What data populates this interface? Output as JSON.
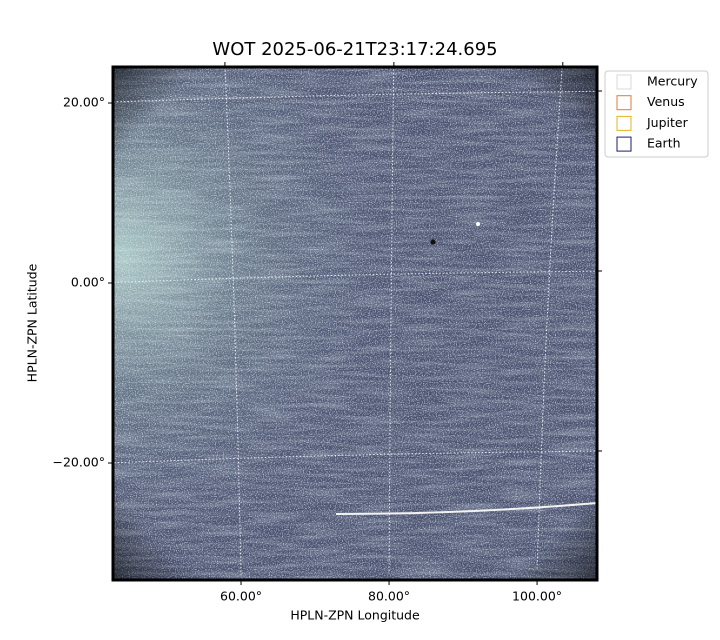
{
  "chart_data": {
    "type": "image",
    "title": "WOT 2025-06-21T23:17:24.695",
    "xlabel": "HPLN-ZPN Longitude",
    "ylabel": "HPLN-ZPN Latitude",
    "xlim": [
      42.7,
      108.1
    ],
    "ylim": [
      -33,
      24
    ],
    "xticks": [
      {
        "value": 60,
        "label": "60.00°"
      },
      {
        "value": 80,
        "label": "80.00°"
      },
      {
        "value": 100,
        "label": "100.00°"
      }
    ],
    "yticks": [
      {
        "value": 20,
        "label": "20.00°"
      },
      {
        "value": 0,
        "label": "0.00°"
      },
      {
        "value": -20,
        "label": "−20.00°"
      }
    ],
    "grid": true,
    "legend_position": "outside-upper-right",
    "series": [
      {
        "name": "Mercury",
        "color": "#d9d9d9"
      },
      {
        "name": "Venus",
        "color": "#e07b39"
      },
      {
        "name": "Jupiter",
        "color": "#e6b020"
      },
      {
        "name": "Earth",
        "color": "#1a1a7a"
      }
    ]
  }
}
